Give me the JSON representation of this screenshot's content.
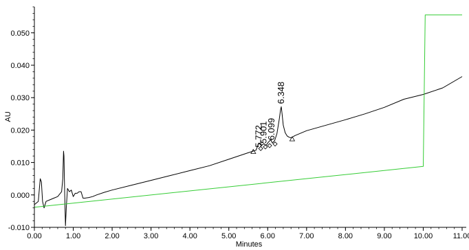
{
  "chart_data": {
    "type": "line",
    "title": "",
    "xlabel": "Minutes",
    "ylabel": "AU",
    "xlim": [
      0,
      11
    ],
    "ylim": [
      -0.01,
      0.058
    ],
    "x_ticks": [
      0,
      1,
      2,
      3,
      4,
      5,
      6,
      7,
      8,
      9,
      10,
      11
    ],
    "x_tick_labels": [
      "0.00",
      "1.00",
      "2.00",
      "3.00",
      "4.00",
      "5.00",
      "6.00",
      "7.00",
      "8.00",
      "9.00",
      "10.00",
      "11.00"
    ],
    "y_ticks": [
      -0.01,
      0,
      0.01,
      0.02,
      0.03,
      0.04,
      0.05
    ],
    "y_tick_labels": [
      "-0.010",
      "0.000",
      "0.010",
      "0.020",
      "0.030",
      "0.040",
      "0.050"
    ],
    "grid": false,
    "series": [
      {
        "color": "#000000",
        "x": [
          0.0,
          0.1,
          0.15,
          0.18,
          0.21,
          0.25,
          0.3,
          0.4,
          0.5,
          0.6,
          0.7,
          0.73,
          0.75,
          0.76,
          0.78,
          0.8,
          0.82,
          0.85,
          0.9,
          0.95,
          1.0,
          1.05,
          1.1,
          1.15,
          1.2,
          1.25,
          1.3,
          1.4,
          1.5,
          1.6,
          1.8,
          2.0,
          2.5,
          3.0,
          3.5,
          4.0,
          4.5,
          5.0,
          5.5,
          5.7,
          5.77,
          5.84,
          5.9,
          5.96,
          6.02,
          6.08,
          6.12,
          6.18,
          6.24,
          6.3,
          6.33,
          6.348,
          6.37,
          6.4,
          6.45,
          6.5,
          6.55,
          6.6,
          6.7,
          7.0,
          7.5,
          8.0,
          8.5,
          9.0,
          9.5,
          10.0,
          10.5,
          11.0
        ],
        "y": [
          -0.003,
          -0.002,
          0.005,
          0.004,
          -0.002,
          -0.004,
          -0.002,
          -0.0015,
          -0.001,
          -0.0005,
          0.001,
          0.005,
          0.0135,
          0.012,
          0.0,
          -0.0095,
          -0.004,
          0.002,
          0.001,
          0.0015,
          -0.0005,
          0.0005,
          0.0005,
          0.001,
          0.001,
          -0.001,
          -0.001,
          -0.0008,
          -0.0005,
          0.0,
          0.0008,
          0.0015,
          0.003,
          0.0045,
          0.006,
          0.0075,
          0.009,
          0.011,
          0.013,
          0.0138,
          0.016,
          0.0152,
          0.0158,
          0.0153,
          0.0163,
          0.017,
          0.016,
          0.0168,
          0.019,
          0.0235,
          0.0262,
          0.0272,
          0.025,
          0.0215,
          0.0192,
          0.0182,
          0.0178,
          0.0176,
          0.0183,
          0.0198,
          0.0215,
          0.0232,
          0.025,
          0.027,
          0.0295,
          0.031,
          0.033,
          0.0365
        ]
      },
      {
        "color": "#33cc33",
        "x": [
          0.0,
          10.0,
          10.05,
          11.0
        ],
        "y": [
          -0.0038,
          0.0088,
          0.0555,
          0.0555
        ]
      }
    ],
    "annotations": [
      {
        "text": "5.772",
        "x": 5.772,
        "y": 0.0138
      },
      {
        "text": "5.901",
        "x": 5.901,
        "y": 0.015
      },
      {
        "text": "6.099",
        "x": 6.099,
        "y": 0.016
      },
      {
        "text": "6.348",
        "x": 6.348,
        "y": 0.0272
      }
    ],
    "markers": [
      {
        "shape": "triangle",
        "x": 5.63,
        "y": 0.0133
      },
      {
        "shape": "diamond",
        "x": 5.82,
        "y": 0.0143
      },
      {
        "shape": "diamond",
        "x": 5.94,
        "y": 0.0148
      },
      {
        "shape": "diamond",
        "x": 6.05,
        "y": 0.0152
      },
      {
        "shape": "diamond",
        "x": 6.19,
        "y": 0.0157
      },
      {
        "shape": "triangle",
        "x": 6.63,
        "y": 0.0172
      }
    ]
  }
}
